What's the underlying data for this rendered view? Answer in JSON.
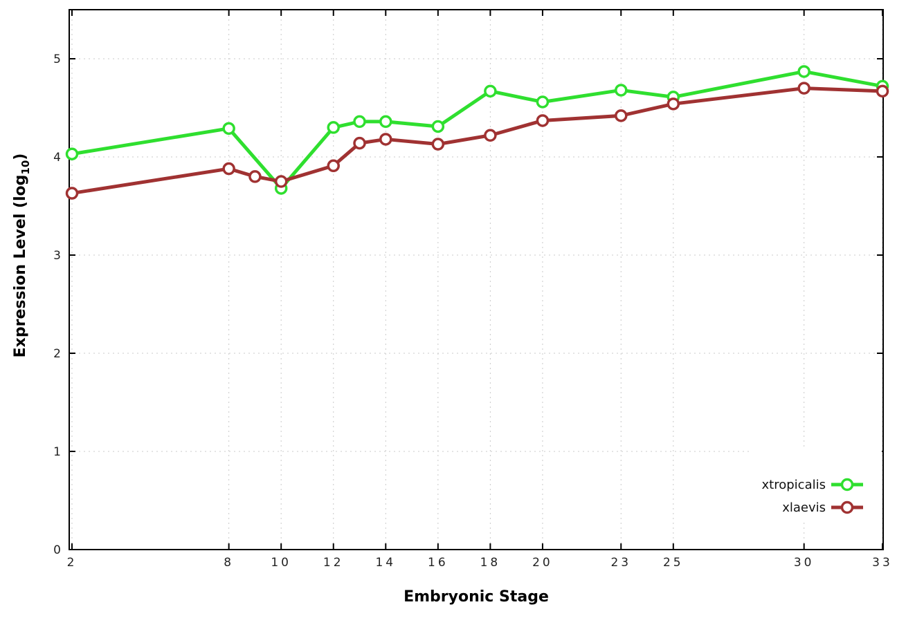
{
  "chart_data": {
    "type": "line",
    "title": "",
    "xlabel": "Embryonic Stage",
    "ylabel_main": "Expression Level (log",
    "ylabel_sub": "10",
    "ylabel_end": ")",
    "xlim": [
      2,
      33
    ],
    "ylim": [
      0,
      5.5
    ],
    "grid": true,
    "legend_position": "bottom-right",
    "x_ticks": [
      2,
      8,
      10,
      12,
      14,
      16,
      18,
      20,
      23,
      25,
      30,
      33
    ],
    "y_ticks": [
      0,
      1,
      2,
      3,
      4,
      5
    ],
    "series": [
      {
        "name": "xtropicalis",
        "color": "#2fdf2f",
        "x": [
          2,
          8,
          10,
          12,
          13,
          14,
          16,
          18,
          20,
          23,
          25,
          30,
          33
        ],
        "values": [
          4.03,
          4.29,
          3.68,
          4.3,
          4.36,
          4.36,
          4.31,
          4.67,
          4.56,
          4.68,
          4.61,
          4.87,
          4.72
        ]
      },
      {
        "name": "xlaevis",
        "color": "#a03232",
        "x": [
          2,
          8,
          9,
          10,
          12,
          13,
          14,
          16,
          18,
          20,
          23,
          25,
          30,
          33
        ],
        "values": [
          3.63,
          3.88,
          3.8,
          3.75,
          3.91,
          4.14,
          4.18,
          4.13,
          4.22,
          4.37,
          4.42,
          4.54,
          4.7,
          4.67
        ]
      }
    ]
  }
}
